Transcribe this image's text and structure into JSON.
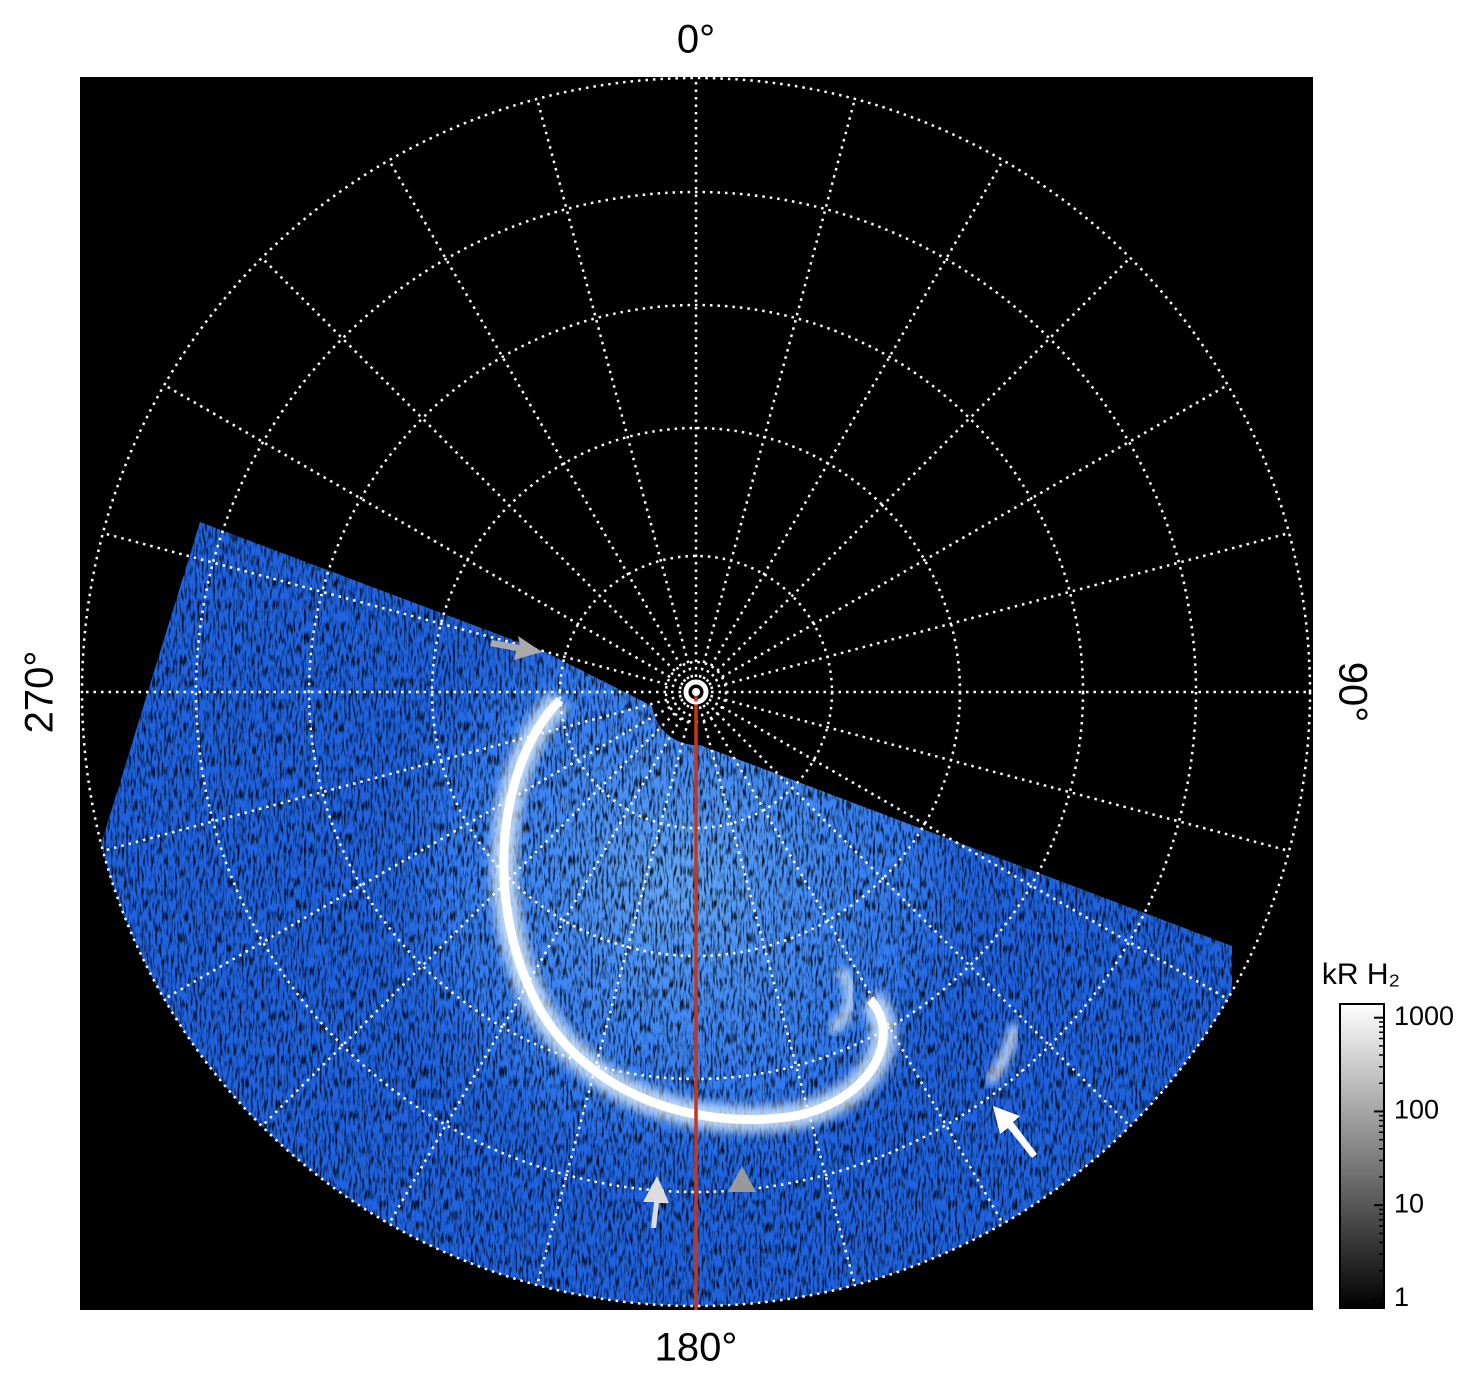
{
  "chart_data": {
    "type": "polar-image",
    "angle_labels": {
      "top": "0°",
      "right": "90°",
      "bottom": "180°",
      "left": "270°"
    },
    "colorbar": {
      "label": "kR H₂",
      "log": true,
      "lim": [
        0.8,
        1400
      ],
      "ticks": [
        1,
        10,
        100,
        1000
      ]
    }
  }
}
